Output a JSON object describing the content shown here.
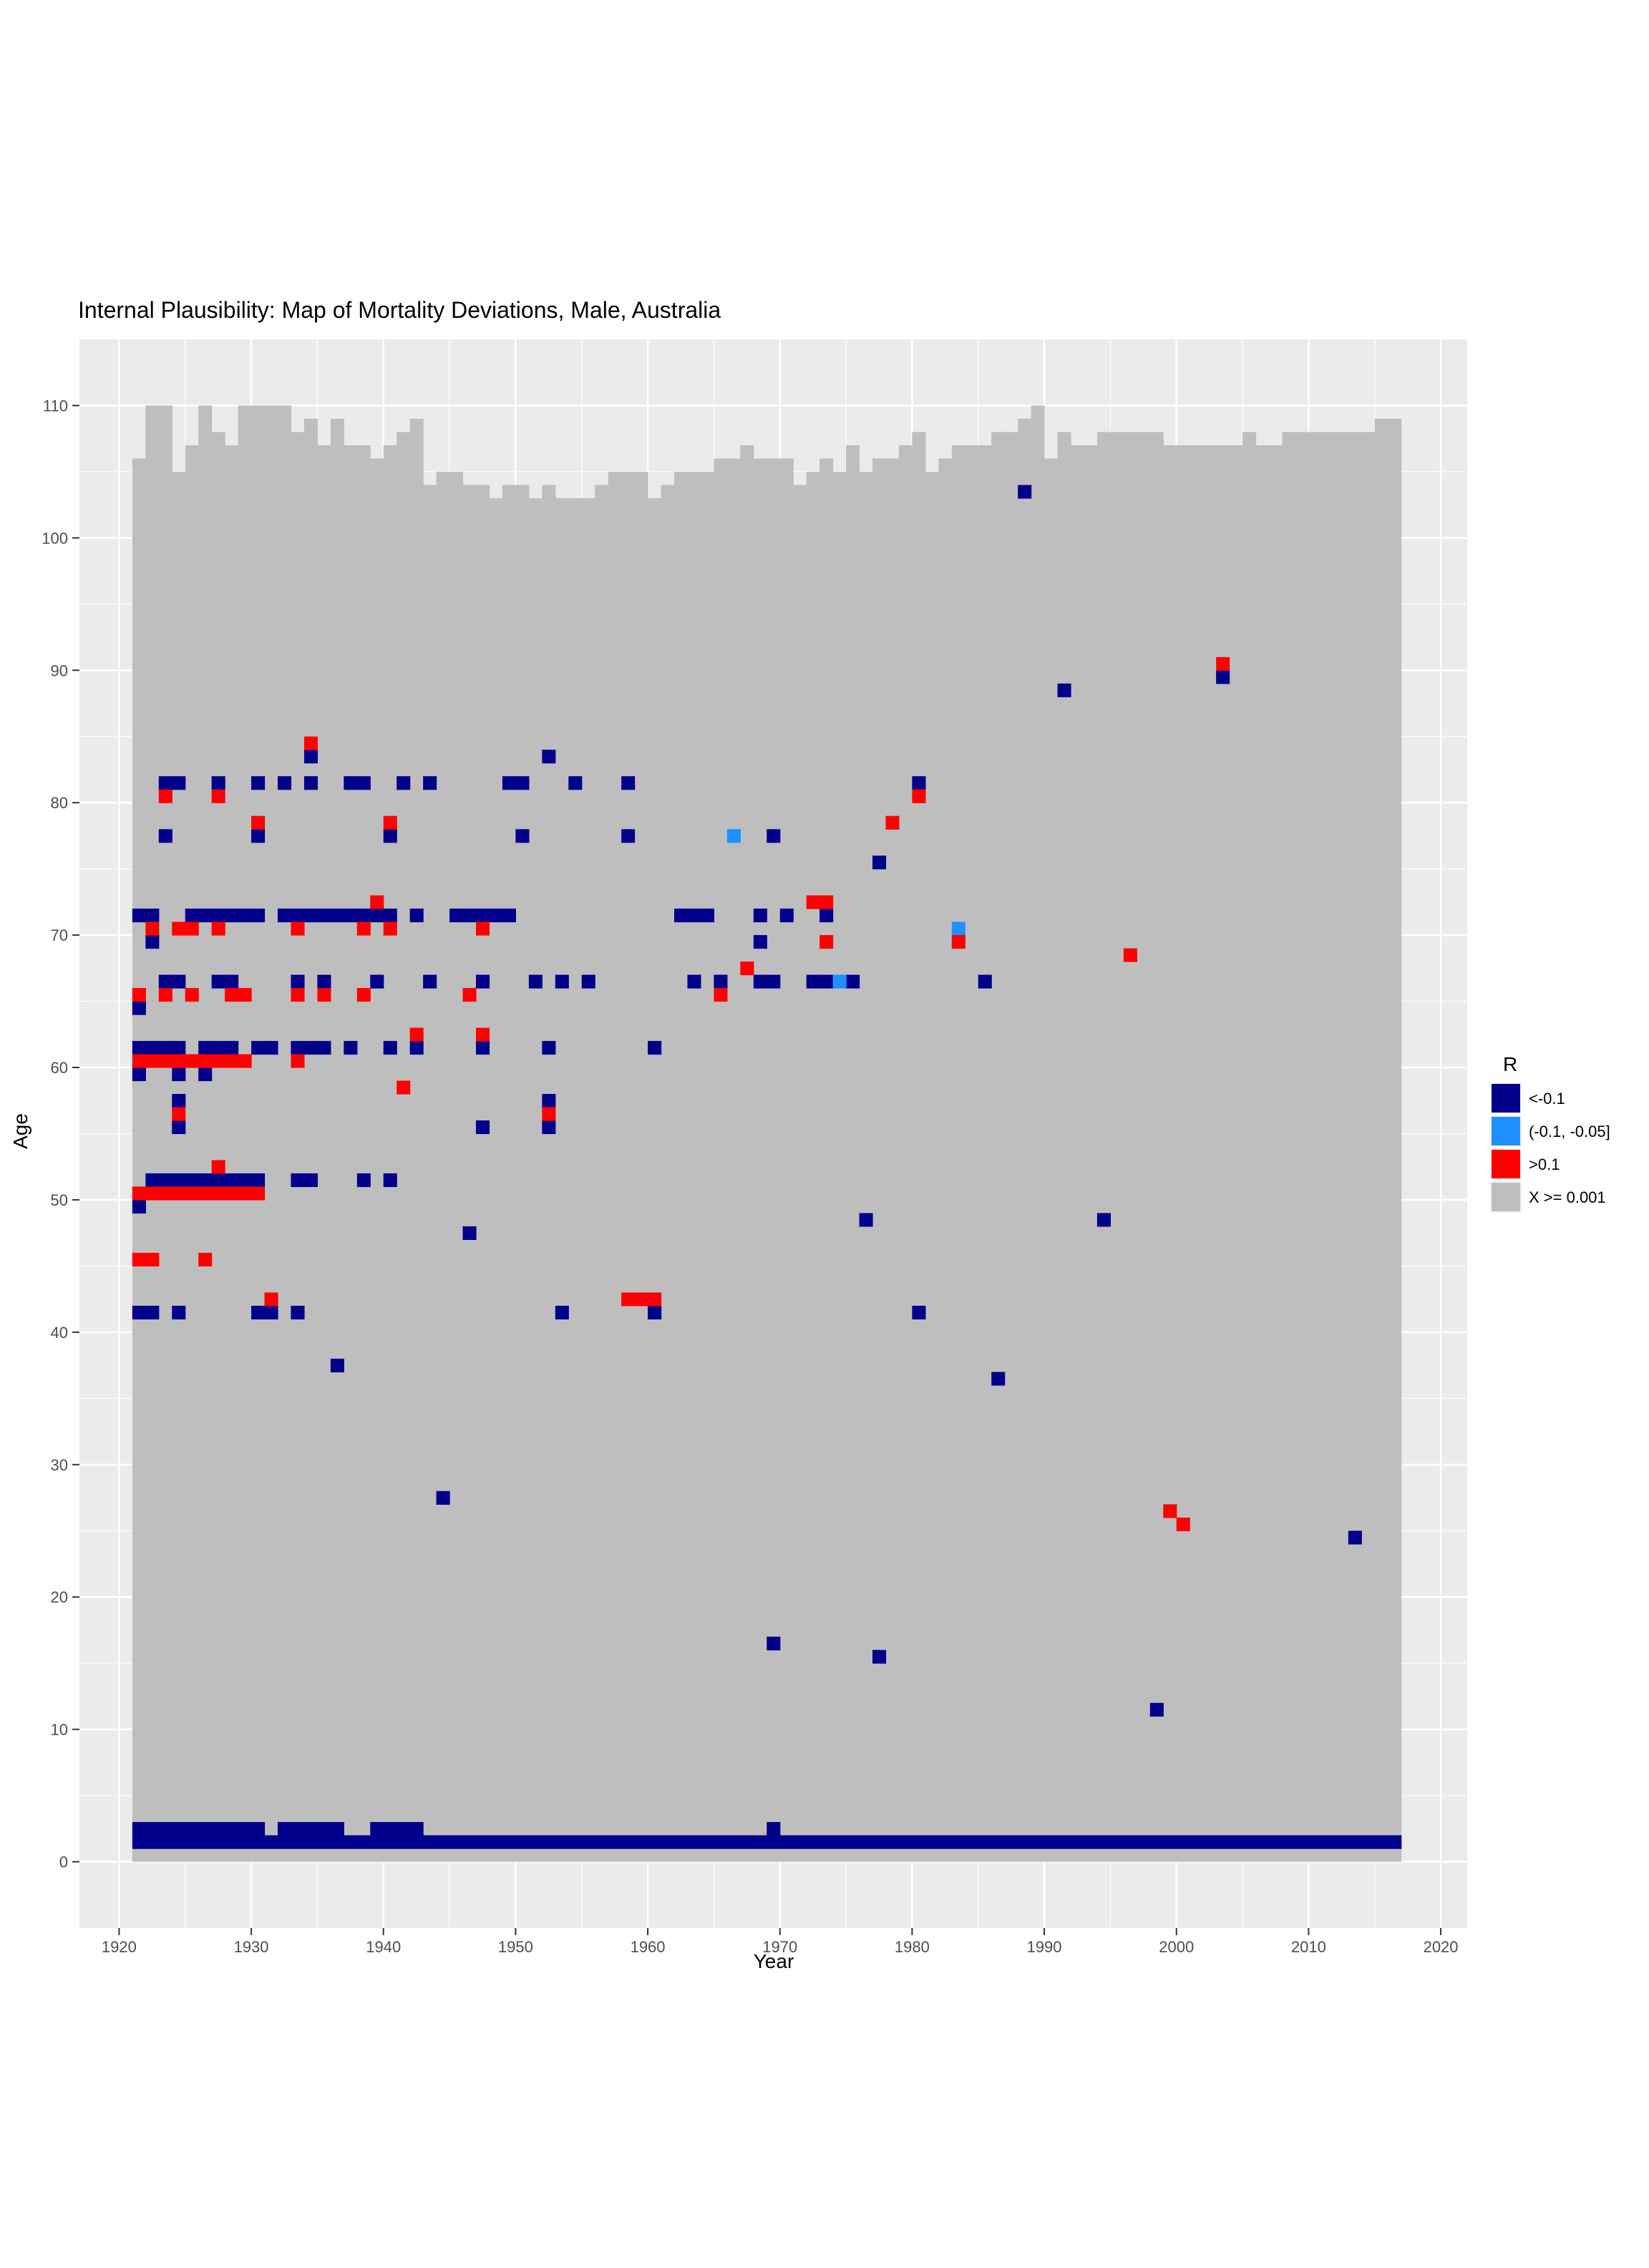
{
  "chart_data": {
    "type": "heatmap",
    "title": "Internal Plausibility: Map of Mortality Deviations, Male, Australia",
    "xlabel": "Year",
    "ylabel": "Age",
    "xlim": [
      1917,
      2022
    ],
    "ylim": [
      -5,
      115
    ],
    "xticks": [
      1920,
      1930,
      1940,
      1950,
      1960,
      1970,
      1980,
      1990,
      2000,
      2010,
      2020
    ],
    "yticks": [
      0,
      10,
      20,
      30,
      40,
      50,
      60,
      70,
      80,
      90,
      100,
      110
    ],
    "grid": true,
    "legend": {
      "title": "R",
      "position": "right",
      "entries": [
        {
          "label": "<-0.1",
          "color": "#00008B"
        },
        {
          "label": "(-0.1, -0.05]",
          "color": "#1E90FF"
        },
        {
          "label": ">0.1",
          "color": "#FF0000"
        },
        {
          "label": "X >= 0.001",
          "color": "#BEBEBE"
        }
      ]
    },
    "colors": {
      "panel": "#EBEBEB",
      "grid": "#FFFFFF",
      "lt_neg_0_1": "#00008B",
      "neg_0_1_to_neg_0_05": "#1E90FF",
      "gt_0_1": "#FF0000",
      "background_cells": "#BEBEBE"
    },
    "year_range": [
      1921,
      2016
    ],
    "max_age_by_year": [
      105,
      109,
      109,
      104,
      106,
      109,
      107,
      106,
      109,
      109,
      109,
      109,
      107,
      108,
      106,
      108,
      106,
      106,
      105,
      106,
      107,
      108,
      103,
      104,
      104,
      103,
      103,
      102,
      103,
      103,
      102,
      103,
      102,
      102,
      102,
      103,
      104,
      104,
      104,
      102,
      103,
      104,
      104,
      104,
      105,
      105,
      106,
      105,
      105,
      105,
      103,
      104,
      105,
      104,
      106,
      104,
      105,
      105,
      106,
      107,
      104,
      105,
      106,
      106,
      106,
      107,
      107,
      108,
      109,
      105,
      107,
      106,
      106,
      107,
      107,
      107,
      107,
      107,
      106,
      106,
      106,
      106,
      106,
      106,
      107,
      106,
      106,
      107,
      107,
      107,
      107,
      107,
      107,
      107,
      108,
      108
    ],
    "cells": {
      "lt_neg_0_1": [
        [
          1921,
          71
        ],
        [
          1922,
          71
        ],
        [
          1921,
          64
        ],
        [
          1921,
          61
        ],
        [
          1922,
          61
        ],
        [
          1923,
          61
        ],
        [
          1924,
          61
        ],
        [
          1921,
          59
        ],
        [
          1921,
          49
        ],
        [
          1922,
          51
        ],
        [
          1923,
          51
        ],
        [
          1924,
          51
        ],
        [
          1925,
          51
        ],
        [
          1926,
          51
        ],
        [
          1921,
          41
        ],
        [
          1922,
          41
        ],
        [
          1922,
          69
        ],
        [
          1923,
          81
        ],
        [
          1924,
          81
        ],
        [
          1923,
          77
        ],
        [
          1923,
          66
        ],
        [
          1924,
          66
        ],
        [
          1924,
          59
        ],
        [
          1924,
          57
        ],
        [
          1924,
          55
        ],
        [
          1924,
          41
        ],
        [
          1925,
          71
        ],
        [
          1926,
          71
        ],
        [
          1927,
          71
        ],
        [
          1928,
          71
        ],
        [
          1929,
          71
        ],
        [
          1930,
          71
        ],
        [
          1927,
          81
        ],
        [
          1927,
          66
        ],
        [
          1928,
          66
        ],
        [
          1926,
          61
        ],
        [
          1927,
          61
        ],
        [
          1928,
          61
        ],
        [
          1926,
          59
        ],
        [
          1927,
          51
        ],
        [
          1928,
          51
        ],
        [
          1929,
          51
        ],
        [
          1930,
          51
        ],
        [
          1930,
          81
        ],
        [
          1930,
          77
        ],
        [
          1930,
          61
        ],
        [
          1931,
          61
        ],
        [
          1930,
          41
        ],
        [
          1931,
          41
        ],
        [
          1932,
          71
        ],
        [
          1933,
          71
        ],
        [
          1934,
          71
        ],
        [
          1935,
          71
        ],
        [
          1936,
          71
        ],
        [
          1937,
          71
        ],
        [
          1938,
          71
        ],
        [
          1939,
          71
        ],
        [
          1940,
          71
        ],
        [
          1932,
          81
        ],
        [
          1934,
          83
        ],
        [
          1934,
          81
        ],
        [
          1933,
          66
        ],
        [
          1935,
          66
        ],
        [
          1933,
          61
        ],
        [
          1934,
          61
        ],
        [
          1935,
          61
        ],
        [
          1933,
          51
        ],
        [
          1934,
          51
        ],
        [
          1933,
          41
        ],
        [
          1936,
          37
        ],
        [
          1937,
          81
        ],
        [
          1938,
          81
        ],
        [
          1937,
          61
        ],
        [
          1938,
          51
        ],
        [
          1939,
          66
        ],
        [
          1940,
          77
        ],
        [
          1940,
          61
        ],
        [
          1940,
          51
        ],
        [
          1941,
          81
        ],
        [
          1942,
          71
        ],
        [
          1942,
          61
        ],
        [
          1943,
          81
        ],
        [
          1943,
          66
        ],
        [
          1944,
          27
        ],
        [
          1945,
          71
        ],
        [
          1946,
          71
        ],
        [
          1947,
          71
        ],
        [
          1948,
          71
        ],
        [
          1949,
          71
        ],
        [
          1946,
          47
        ],
        [
          1947,
          66
        ],
        [
          1947,
          61
        ],
        [
          1947,
          55
        ],
        [
          1949,
          81
        ],
        [
          1950,
          81
        ],
        [
          1950,
          77
        ],
        [
          1951,
          66
        ],
        [
          1952,
          83
        ],
        [
          1952,
          61
        ],
        [
          1952,
          57
        ],
        [
          1952,
          55
        ],
        [
          1953,
          66
        ],
        [
          1953,
          41
        ],
        [
          1954,
          81
        ],
        [
          1955,
          66
        ],
        [
          1958,
          81
        ],
        [
          1958,
          77
        ],
        [
          1960,
          61
        ],
        [
          1960,
          41
        ],
        [
          1962,
          71
        ],
        [
          1963,
          71
        ],
        [
          1964,
          71
        ],
        [
          1963,
          66
        ],
        [
          1965,
          66
        ],
        [
          1968,
          71
        ],
        [
          1968,
          69
        ],
        [
          1968,
          66
        ],
        [
          1969,
          66
        ],
        [
          1969,
          77
        ],
        [
          1969,
          16
        ],
        [
          1970,
          71
        ],
        [
          1972,
          66
        ],
        [
          1973,
          66
        ],
        [
          1973,
          71
        ],
        [
          1975,
          66
        ],
        [
          1976,
          48
        ],
        [
          1977,
          75
        ],
        [
          1977,
          15
        ],
        [
          1980,
          81
        ],
        [
          1980,
          41
        ],
        [
          1985,
          66
        ],
        [
          1986,
          36
        ],
        [
          1988,
          103
        ],
        [
          1991,
          88
        ],
        [
          1994,
          48
        ],
        [
          1998,
          11
        ],
        [
          2003,
          89
        ],
        [
          2013,
          24
        ],
        [
          1969,
          2
        ]
      ],
      "neg_0_1_to_neg_0_05": [
        [
          1966,
          77
        ],
        [
          1974,
          66
        ],
        [
          1983,
          70
        ]
      ],
      "gt_0_1": [
        [
          1921,
          65
        ],
        [
          1922,
          70
        ],
        [
          1921,
          60
        ],
        [
          1922,
          60
        ],
        [
          1923,
          60
        ],
        [
          1924,
          60
        ],
        [
          1925,
          60
        ],
        [
          1926,
          60
        ],
        [
          1927,
          60
        ],
        [
          1928,
          60
        ],
        [
          1929,
          60
        ],
        [
          1921,
          50
        ],
        [
          1922,
          50
        ],
        [
          1923,
          50
        ],
        [
          1924,
          50
        ],
        [
          1925,
          50
        ],
        [
          1926,
          50
        ],
        [
          1927,
          50
        ],
        [
          1928,
          50
        ],
        [
          1929,
          50
        ],
        [
          1921,
          45
        ],
        [
          1922,
          45
        ],
        [
          1923,
          80
        ],
        [
          1923,
          65
        ],
        [
          1924,
          70
        ],
        [
          1925,
          70
        ],
        [
          1925,
          65
        ],
        [
          1924,
          56
        ],
        [
          1926,
          45
        ],
        [
          1927,
          80
        ],
        [
          1927,
          70
        ],
        [
          1928,
          65
        ],
        [
          1929,
          65
        ],
        [
          1927,
          52
        ],
        [
          1930,
          78
        ],
        [
          1930,
          50
        ],
        [
          1931,
          42
        ],
        [
          1933,
          70
        ],
        [
          1933,
          65
        ],
        [
          1933,
          60
        ],
        [
          1934,
          84
        ],
        [
          1935,
          65
        ],
        [
          1938,
          70
        ],
        [
          1938,
          65
        ],
        [
          1939,
          72
        ],
        [
          1940,
          78
        ],
        [
          1940,
          70
        ],
        [
          1941,
          58
        ],
        [
          1942,
          62
        ],
        [
          1946,
          65
        ],
        [
          1947,
          70
        ],
        [
          1947,
          62
        ],
        [
          1952,
          56
        ],
        [
          1958,
          42
        ],
        [
          1959,
          42
        ],
        [
          1960,
          42
        ],
        [
          1965,
          65
        ],
        [
          1967,
          67
        ],
        [
          1972,
          72
        ],
        [
          1973,
          72
        ],
        [
          1973,
          69
        ],
        [
          1978,
          78
        ],
        [
          1980,
          80
        ],
        [
          1983,
          69
        ],
        [
          1996,
          68
        ],
        [
          1999,
          26
        ],
        [
          2000,
          25
        ],
        [
          2003,
          90
        ]
      ],
      "age0_rows": {
        "lt_neg_0_1_age1_all_years": [
          1921,
          2016
        ],
        "lt_neg_0_1_age2_years": [
          [
            1921,
            1930
          ],
          [
            1932,
            1936
          ],
          [
            1939,
            1942
          ]
        ]
      }
    }
  }
}
